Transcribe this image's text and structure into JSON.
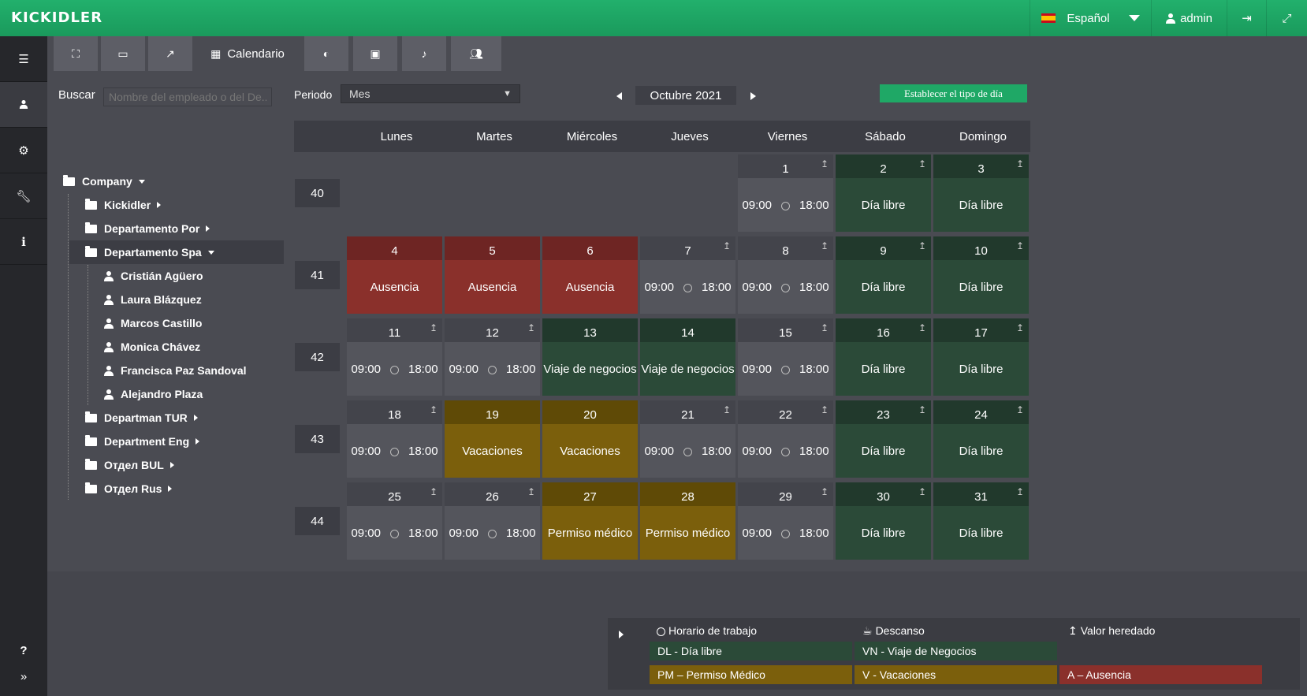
{
  "topbar": {
    "logo": "KICKIDLER",
    "language": "Español",
    "user": "admin"
  },
  "tabs": [
    {
      "icon": "org-chart-icon"
    },
    {
      "icon": "monitor-icon"
    },
    {
      "icon": "chart-icon"
    },
    {
      "icon": "calendar-icon",
      "label": "Calendario"
    },
    {
      "icon": "toggle-icon"
    },
    {
      "icon": "id-card-icon"
    },
    {
      "icon": "bell-icon"
    },
    {
      "icon": "users-check-icon"
    }
  ],
  "search": {
    "label": "Buscar",
    "placeholder": "Nombre del empleado o del De..."
  },
  "tree": {
    "root": "Company",
    "departments": [
      "Kickidler",
      "Departamento Por",
      "Departamento Spa",
      "Departman TUR",
      "Department Eng",
      "Отдел BUL",
      "Отдел Rus"
    ],
    "employees": [
      "Cristián Agüero",
      "Laura Blázquez",
      "Marcos Castillo",
      "Monica Chávez",
      "Francisca Paz Sandoval",
      "Alejandro Plaza"
    ]
  },
  "period": {
    "label": "Periodo",
    "value": "Mes",
    "month": "Octubre 2021",
    "set_day_type": "Establecer el tipo de día"
  },
  "weekdays": [
    "Lunes",
    "Martes",
    "Miércoles",
    "Jueves",
    "Viernes",
    "Sábado",
    "Domingo"
  ],
  "weeks": [
    "40",
    "41",
    "42",
    "43",
    "44"
  ],
  "labels": {
    "free": "Día libre",
    "absence": "Ausencia",
    "business": "Viaje de negocios",
    "vacation": "Vacaciones",
    "medical": "Permiso médico",
    "start": "09:00",
    "end": "18:00"
  },
  "days": [
    {
      "d": "1",
      "w": 0,
      "col": 4,
      "type": "work",
      "inh": true
    },
    {
      "d": "2",
      "w": 0,
      "col": 5,
      "type": "free",
      "inh": true
    },
    {
      "d": "3",
      "w": 0,
      "col": 6,
      "type": "free",
      "inh": true
    },
    {
      "d": "4",
      "w": 1,
      "col": 0,
      "type": "abs",
      "inh": false
    },
    {
      "d": "5",
      "w": 1,
      "col": 1,
      "type": "abs",
      "inh": false
    },
    {
      "d": "6",
      "w": 1,
      "col": 2,
      "type": "abs",
      "inh": false
    },
    {
      "d": "7",
      "w": 1,
      "col": 3,
      "type": "work",
      "inh": true
    },
    {
      "d": "8",
      "w": 1,
      "col": 4,
      "type": "work",
      "inh": true
    },
    {
      "d": "9",
      "w": 1,
      "col": 5,
      "type": "free",
      "inh": true
    },
    {
      "d": "10",
      "w": 1,
      "col": 6,
      "type": "free",
      "inh": true
    },
    {
      "d": "11",
      "w": 2,
      "col": 0,
      "type": "work",
      "inh": true
    },
    {
      "d": "12",
      "w": 2,
      "col": 1,
      "type": "work",
      "inh": true
    },
    {
      "d": "13",
      "w": 2,
      "col": 2,
      "type": "biz",
      "inh": false
    },
    {
      "d": "14",
      "w": 2,
      "col": 3,
      "type": "biz",
      "inh": false
    },
    {
      "d": "15",
      "w": 2,
      "col": 4,
      "type": "work",
      "inh": true
    },
    {
      "d": "16",
      "w": 2,
      "col": 5,
      "type": "free",
      "inh": true
    },
    {
      "d": "17",
      "w": 2,
      "col": 6,
      "type": "free",
      "inh": true
    },
    {
      "d": "18",
      "w": 3,
      "col": 0,
      "type": "work",
      "inh": true
    },
    {
      "d": "19",
      "w": 3,
      "col": 1,
      "type": "vac",
      "inh": false
    },
    {
      "d": "20",
      "w": 3,
      "col": 2,
      "type": "vac",
      "inh": false
    },
    {
      "d": "21",
      "w": 3,
      "col": 3,
      "type": "work",
      "inh": true
    },
    {
      "d": "22",
      "w": 3,
      "col": 4,
      "type": "work",
      "inh": true
    },
    {
      "d": "23",
      "w": 3,
      "col": 5,
      "type": "free",
      "inh": true
    },
    {
      "d": "24",
      "w": 3,
      "col": 6,
      "type": "free",
      "inh": true
    },
    {
      "d": "25",
      "w": 4,
      "col": 0,
      "type": "work",
      "inh": true
    },
    {
      "d": "26",
      "w": 4,
      "col": 1,
      "type": "work",
      "inh": true
    },
    {
      "d": "27",
      "w": 4,
      "col": 2,
      "type": "med",
      "inh": false
    },
    {
      "d": "28",
      "w": 4,
      "col": 3,
      "type": "med",
      "inh": false
    },
    {
      "d": "29",
      "w": 4,
      "col": 4,
      "type": "work",
      "inh": true
    },
    {
      "d": "30",
      "w": 4,
      "col": 5,
      "type": "free",
      "inh": true
    },
    {
      "d": "31",
      "w": 4,
      "col": 6,
      "type": "free",
      "inh": true
    }
  ],
  "legend": {
    "work_hours": "Horario de trabajo",
    "break": "Descanso",
    "inherited": "Valor heredado",
    "dl": "DL - Día libre",
    "vn": "VN - Viaje de Negocios",
    "pm": "PM – Permiso Médico",
    "v": "V - Vacaciones",
    "a": "A – Ausencia"
  },
  "colors": {
    "brand": "#1fa866",
    "free": "#2b4a38",
    "absence": "#8a302b",
    "vacation": "#7b5f0c",
    "work": "#54555c"
  }
}
